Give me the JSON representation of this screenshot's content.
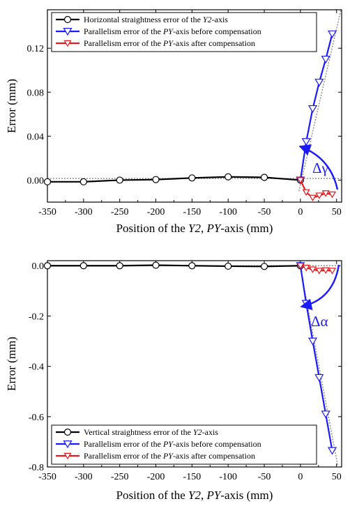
{
  "colors": {
    "black_series": "#000000",
    "blue_series": "#1a1aff",
    "red_series": "#e8191c",
    "guide": "#888888"
  },
  "chart_data": [
    {
      "type": "line",
      "xlabel": [
        "Position of the ",
        "Y2",
        ", ",
        "PY",
        "-axis (mm)"
      ],
      "ylabel": "Error (mm)",
      "xlim": [
        -350,
        57
      ],
      "ylim": [
        -0.02,
        0.155
      ],
      "xticks": [
        -350,
        -300,
        -250,
        -200,
        -150,
        -100,
        -50,
        0,
        50
      ],
      "xtick_labels": [
        "-350",
        "-300",
        "-250",
        "-200",
        "-150",
        "-100",
        "-50",
        "0",
        "50"
      ],
      "yticks": [
        0.0,
        0.04,
        0.08,
        0.12
      ],
      "ytick_labels": [
        "0.00",
        "0.04",
        "0.08",
        "0.12"
      ],
      "grid": false,
      "legend_position": "top",
      "series": [
        {
          "name": [
            "Horizontal straightness error of the ",
            "Y2",
            "-axis"
          ],
          "color": "#000000",
          "marker": "circle",
          "x": [
            -350,
            -300,
            -250,
            -200,
            -150,
            -100,
            -50,
            0
          ],
          "y": [
            -0.0015,
            -0.0015,
            0.0,
            0.0005,
            0.002,
            0.003,
            0.0025,
            0.0
          ]
        },
        {
          "name": [
            "Parallelism error of the ",
            "PY",
            "-axis before compensation"
          ],
          "color": "#1a1aff",
          "marker": "triangle-down",
          "x": [
            0,
            8,
            17,
            26,
            35,
            44
          ],
          "y": [
            0.0,
            0.035,
            0.065,
            0.089,
            0.11,
            0.133
          ]
        },
        {
          "name": [
            "Parallelism error of the ",
            "PY",
            "-axis after compensation"
          ],
          "color": "#e8191c",
          "marker": "triangle-down",
          "x": [
            0,
            8,
            17,
            26,
            35,
            44
          ],
          "y": [
            0.0,
            -0.011,
            -0.016,
            -0.014,
            -0.012,
            -0.013
          ]
        }
      ],
      "annotation": {
        "text": "Δγ"
      }
    },
    {
      "type": "line",
      "xlabel": [
        "Position of the ",
        "Y2",
        ", ",
        "PY",
        "-axis (mm)"
      ],
      "ylabel": "Error (mm)",
      "xlim": [
        -350,
        57
      ],
      "ylim": [
        -0.8,
        0.02
      ],
      "xticks": [
        -350,
        -300,
        -250,
        -200,
        -150,
        -100,
        -50,
        0,
        50
      ],
      "xtick_labels": [
        "-350",
        "-300",
        "-250",
        "-200",
        "-150",
        "-100",
        "-50",
        "0",
        "50"
      ],
      "yticks": [
        0.0,
        -0.2,
        -0.4,
        -0.6,
        -0.8
      ],
      "ytick_labels": [
        "0.0",
        "-0.2",
        "-0.4",
        "-0.6",
        "-0.8"
      ],
      "grid": false,
      "legend_position": "bottom",
      "series": [
        {
          "name": [
            "Vertical straightness error of the ",
            "Y2",
            "-axis"
          ],
          "color": "#000000",
          "marker": "circle",
          "x": [
            -350,
            -300,
            -250,
            -200,
            -150,
            -100,
            -50,
            0
          ],
          "y": [
            0.0,
            0.0,
            0.0,
            0.002,
            0.0,
            -0.002,
            -0.003,
            0.0
          ]
        },
        {
          "name": [
            "Parallelism error of the ",
            "PY",
            "-axis before compensation"
          ],
          "color": "#1a1aff",
          "marker": "triangle-down",
          "x": [
            0,
            8,
            17,
            26,
            35,
            44
          ],
          "y": [
            0.0,
            -0.15,
            -0.3,
            -0.445,
            -0.59,
            -0.735
          ]
        },
        {
          "name": [
            "Parallelism error of the ",
            "PY",
            "-axis after compensation"
          ],
          "color": "#e8191c",
          "marker": "triangle-down",
          "x": [
            0,
            8,
            17,
            26,
            35,
            44
          ],
          "y": [
            0.0,
            -0.008,
            -0.015,
            -0.02,
            -0.018,
            -0.02
          ]
        }
      ],
      "annotation": {
        "text": "Δα"
      }
    }
  ]
}
